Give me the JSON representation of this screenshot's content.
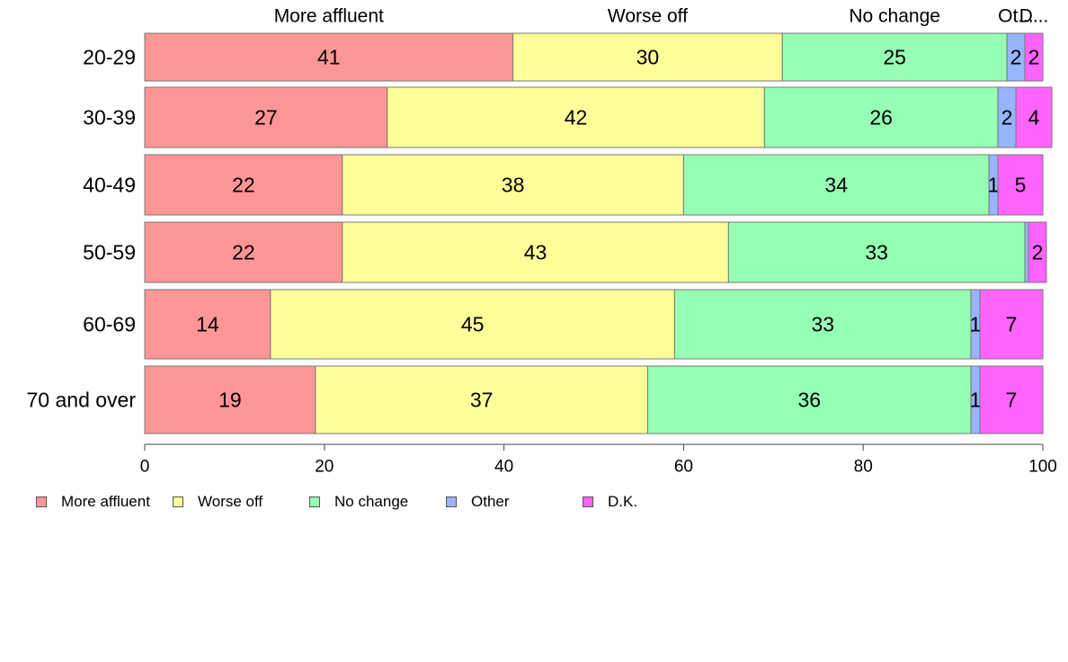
{
  "chart_data": {
    "type": "bar",
    "orientation": "horizontal",
    "stacked": true,
    "title": "",
    "xlabel": "",
    "ylabel": "",
    "xlim": [
      0,
      100
    ],
    "x_ticks": [
      "0",
      "20",
      "40",
      "60",
      "80",
      "100"
    ],
    "categories": [
      "20-29",
      "30-39",
      "40-49",
      "50-59",
      "60-69",
      "70 and over"
    ],
    "top_labels": [
      "More affluent",
      "Worse off",
      "No change",
      "Ot...",
      "D..."
    ],
    "series": [
      {
        "name": "More affluent",
        "color": "#ff9696",
        "values": [
          41,
          27,
          22,
          22,
          14,
          19
        ]
      },
      {
        "name": "Worse off",
        "color": "#ffff9a",
        "values": [
          30,
          42,
          38,
          43,
          45,
          37
        ]
      },
      {
        "name": "No change",
        "color": "#96ffb4",
        "values": [
          25,
          26,
          34,
          33,
          33,
          36
        ]
      },
      {
        "name": "Other",
        "color": "#96b4ff",
        "values": [
          2,
          2,
          1,
          0.4,
          1,
          1
        ]
      },
      {
        "name": "D.K.",
        "color": "#ff64ff",
        "values": [
          2,
          4,
          5,
          2,
          7,
          7
        ]
      }
    ],
    "data_labels": [
      [
        "41",
        "30",
        "25",
        "2",
        "2"
      ],
      [
        "27",
        "42",
        "26",
        "2",
        "4"
      ],
      [
        "22",
        "38",
        "34",
        "1",
        "5"
      ],
      [
        "22",
        "43",
        "33",
        "",
        "2"
      ],
      [
        "14",
        "45",
        "33",
        "1",
        "7"
      ],
      [
        "19",
        "37",
        "36",
        "1",
        "7"
      ]
    ],
    "grid": false,
    "legend_position": "bottom-left"
  }
}
